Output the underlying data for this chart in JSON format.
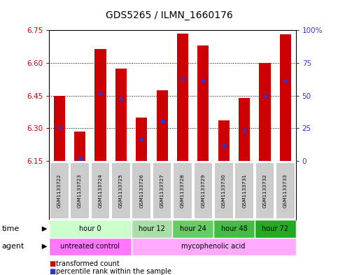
{
  "title": "GDS5265 / ILMN_1660176",
  "samples": [
    "GSM1133722",
    "GSM1133723",
    "GSM1133724",
    "GSM1133725",
    "GSM1133726",
    "GSM1133727",
    "GSM1133728",
    "GSM1133729",
    "GSM1133730",
    "GSM1133731",
    "GSM1133732",
    "GSM1133733"
  ],
  "bar_tops": [
    6.45,
    6.285,
    6.665,
    6.575,
    6.35,
    6.475,
    6.735,
    6.68,
    6.335,
    6.44,
    6.6,
    6.73
  ],
  "bar_bottom": 6.15,
  "percentile_values": [
    6.305,
    6.158,
    6.462,
    6.435,
    6.248,
    6.333,
    6.525,
    6.52,
    6.222,
    6.292,
    6.45,
    6.52
  ],
  "ylim_left": [
    6.15,
    6.75
  ],
  "yticks_left": [
    6.15,
    6.3,
    6.45,
    6.6,
    6.75
  ],
  "yticks_right": [
    0,
    25,
    50,
    75,
    100
  ],
  "ylim_right": [
    0,
    100
  ],
  "bar_color": "#cc0000",
  "percentile_color": "#3333cc",
  "time_groups": [
    {
      "label": "hour 0",
      "start": 0,
      "end": 4,
      "color": "#ccffcc"
    },
    {
      "label": "hour 12",
      "start": 4,
      "end": 6,
      "color": "#aaddaa"
    },
    {
      "label": "hour 24",
      "start": 6,
      "end": 8,
      "color": "#66cc66"
    },
    {
      "label": "hour 48",
      "start": 8,
      "end": 10,
      "color": "#44bb44"
    },
    {
      "label": "hour 72",
      "start": 10,
      "end": 12,
      "color": "#22aa22"
    }
  ],
  "agent_groups": [
    {
      "label": "untreated control",
      "start": 0,
      "end": 4,
      "color": "#ff77ff"
    },
    {
      "label": "mycophenolic acid",
      "start": 4,
      "end": 12,
      "color": "#ffaaff"
    }
  ],
  "legend_items": [
    {
      "label": "transformed count",
      "color": "#cc0000"
    },
    {
      "label": "percentile rank within the sample",
      "color": "#3333cc"
    }
  ],
  "bg_color": "#ffffff",
  "sample_bg": "#cccccc",
  "title_color_left": "#cc0000",
  "title_color_right": "#3333cc"
}
